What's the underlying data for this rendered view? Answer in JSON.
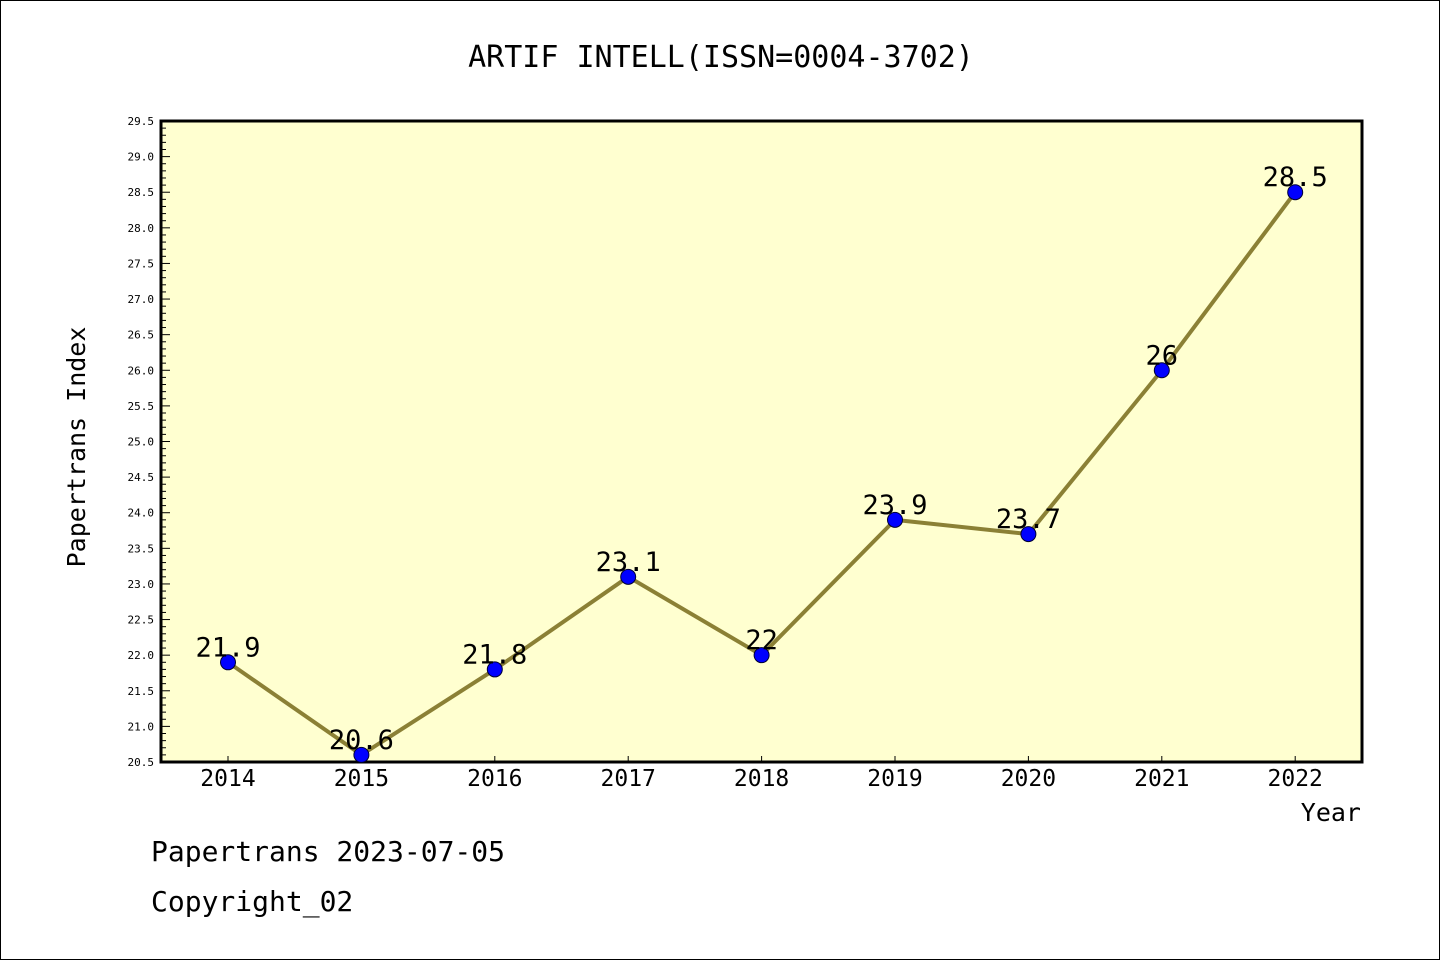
{
  "chart_data": {
    "type": "line",
    "title": "ARTIF INTELL(ISSN=0004-3702)",
    "xlabel": "Year",
    "ylabel": "Papertrans Index",
    "categories": [
      "2014",
      "2015",
      "2016",
      "2017",
      "2018",
      "2019",
      "2020",
      "2021",
      "2022"
    ],
    "series": [
      {
        "values": [
          21.9,
          20.6,
          21.8,
          23.1,
          22.0,
          23.9,
          23.7,
          26.0,
          28.5
        ],
        "data_labels": [
          "21.9",
          "20.6",
          "21.8",
          "23.1",
          "22",
          "23.9",
          "23.7",
          "26",
          "28.5"
        ],
        "line_color": "#8b8035",
        "marker_color": "#0000ff"
      }
    ],
    "ylim": [
      20.5,
      29.5
    ],
    "yticks": [
      "20.5",
      "21.0",
      "21.5",
      "22.0",
      "22.5",
      "23.0",
      "23.5",
      "24.0",
      "24.5",
      "25.0",
      "25.5",
      "26.0",
      "26.5",
      "27.0",
      "27.5",
      "28.0",
      "28.5",
      "29.0",
      "29.5"
    ],
    "grid": false,
    "plot_background": "#ffffd0"
  },
  "footer": {
    "line1": "Papertrans 2023-07-05",
    "line2": "Copyright_02"
  }
}
